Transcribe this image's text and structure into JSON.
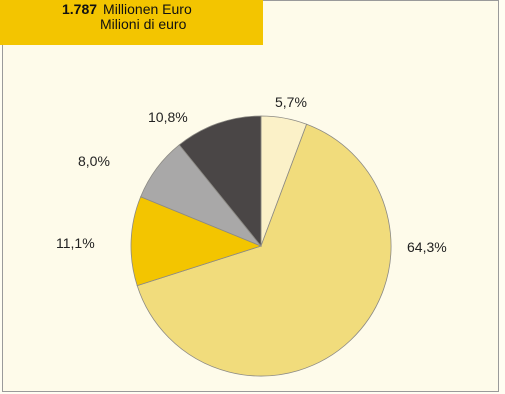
{
  "header": {
    "value": "1.787",
    "unit_de": "Millionen Euro",
    "unit_it": "Milioni di euro"
  },
  "colors": {
    "header_bg": "#f3c500",
    "panel_bg": "#fefbea",
    "panel_border": "#9a9a9a"
  },
  "chart_data": {
    "type": "pie",
    "start_angle_deg": 0,
    "direction": "clockwise",
    "slices": [
      {
        "value": 5.7,
        "label": "5,7%",
        "color": "#fbf1c8"
      },
      {
        "value": 64.3,
        "label": "64,3%",
        "color": "#f1dc7c"
      },
      {
        "value": 11.1,
        "label": "11,1%",
        "color": "#f3c500"
      },
      {
        "value": 8.0,
        "label": "8,0%",
        "color": "#a9a8a8"
      },
      {
        "value": 10.8,
        "label": "10,8%",
        "color": "#4a4646"
      }
    ]
  }
}
